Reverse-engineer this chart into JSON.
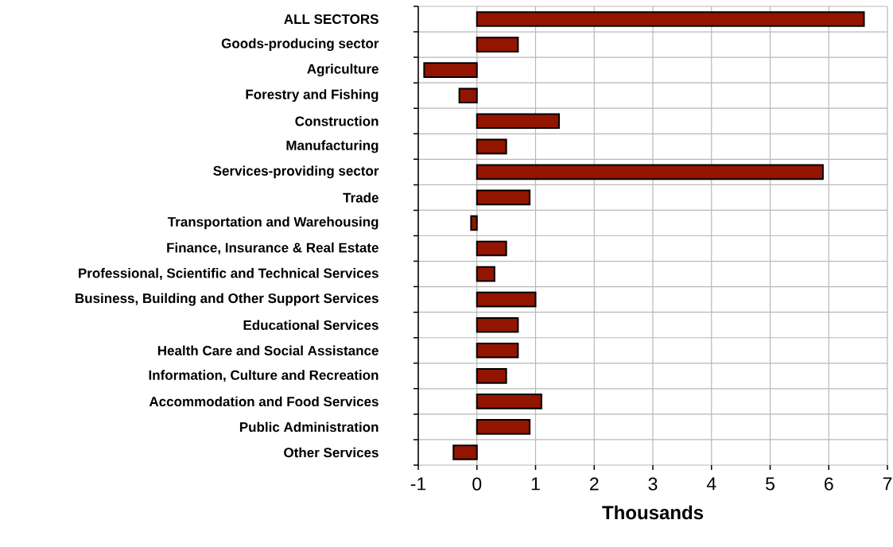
{
  "chart_data": {
    "type": "bar",
    "orientation": "horizontal",
    "xlabel": "Thousands",
    "categories": [
      "ALL SECTORS",
      "Goods-producing sector",
      "Agriculture",
      "Forestry and Fishing",
      "Construction",
      "Manufacturing",
      "Services-providing sector",
      "Trade",
      "Transportation and Warehousing",
      "Finance, Insurance & Real Estate",
      "Professional, Scientific and Technical Services",
      "Business, Building and Other Support Services",
      "Educational Services",
      "Health Care and Social Assistance",
      "Information, Culture and Recreation",
      "Accommodation and Food Services",
      "Public Administration",
      "Other Services"
    ],
    "values": [
      6.6,
      0.7,
      -0.9,
      -0.3,
      1.4,
      0.5,
      5.9,
      0.9,
      -0.1,
      0.5,
      0.3,
      1.0,
      0.7,
      0.7,
      0.5,
      1.1,
      0.9,
      -0.4
    ],
    "color": "#931500",
    "xlim": [
      -1,
      7
    ],
    "xticks": [
      -1,
      0,
      1,
      2,
      3,
      4,
      5,
      6,
      7
    ],
    "grid": true
  }
}
